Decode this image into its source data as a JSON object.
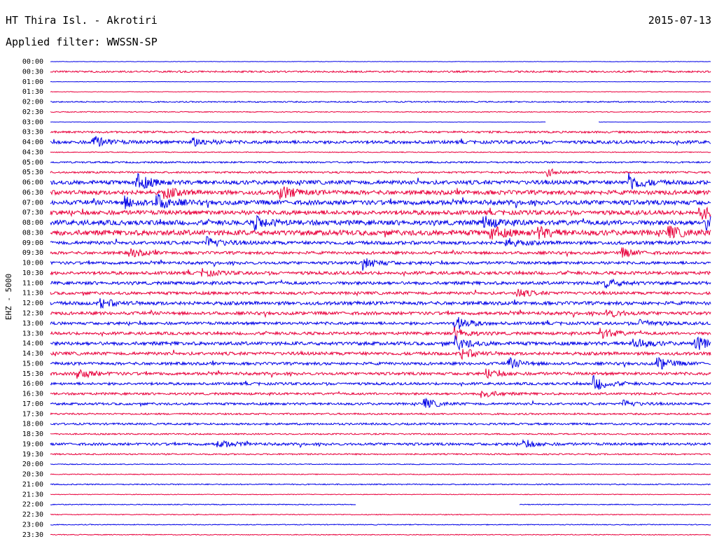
{
  "header": {
    "station": "HT Thira Isl. - Akrotiri",
    "date": "2015-07-13",
    "filter_label": "Applied filter: WWSSN-SP"
  },
  "chart_data": {
    "type": "line",
    "title": "HT Thira Isl. - Akrotiri",
    "ylabel": "EHZ - 5000",
    "rows": [
      "00:00",
      "00:30",
      "01:00",
      "01:30",
      "02:00",
      "02:30",
      "03:00",
      "03:30",
      "04:00",
      "04:30",
      "05:00",
      "05:30",
      "06:00",
      "06:30",
      "07:00",
      "07:30",
      "08:00",
      "08:30",
      "09:00",
      "09:30",
      "10:00",
      "10:30",
      "11:00",
      "11:30",
      "12:00",
      "12:30",
      "13:00",
      "13:30",
      "14:00",
      "14:30",
      "15:00",
      "15:30",
      "16:00",
      "16:30",
      "17:00",
      "17:30",
      "18:00",
      "18:30",
      "19:00",
      "19:30",
      "20:00",
      "20:30",
      "21:00",
      "21:30",
      "22:00",
      "22:30",
      "23:00",
      "23:30"
    ],
    "colors": [
      "#0000e6",
      "#e8003c"
    ],
    "noise_level": [
      0.3,
      1.2,
      0.3,
      0.4,
      0.9,
      0.6,
      0.3,
      1.4,
      2.2,
      0.6,
      1.2,
      1.3,
      2.8,
      3.0,
      3.2,
      3.0,
      3.4,
      3.6,
      2.4,
      2.0,
      2.0,
      2.2,
      2.2,
      2.0,
      2.4,
      2.2,
      2.0,
      2.0,
      2.4,
      2.2,
      2.0,
      2.0,
      1.8,
      1.6,
      1.6,
      1.2,
      1.4,
      1.0,
      1.8,
      1.0,
      0.6,
      0.6,
      0.8,
      0.5,
      0.6,
      0.6,
      0.6,
      0.6
    ],
    "gaps": [
      {
        "row": "03:00",
        "from_min": 22.5,
        "to_min": 24.9
      },
      {
        "row": "22:00",
        "from_min": 13.9,
        "to_min": 21.3
      }
    ],
    "events": [
      {
        "row": "04:00",
        "min": 1.9,
        "amp": 9
      },
      {
        "row": "04:00",
        "min": 6.5,
        "amp": 6
      },
      {
        "row": "05:30",
        "min": 22.6,
        "amp": 5
      },
      {
        "row": "06:00",
        "min": 3.9,
        "amp": 12
      },
      {
        "row": "06:00",
        "min": 26.3,
        "amp": 12
      },
      {
        "row": "06:30",
        "min": 10.4,
        "amp": 10
      },
      {
        "row": "06:30",
        "min": 5.2,
        "amp": 7
      },
      {
        "row": "07:00",
        "min": 4.8,
        "amp": 11
      },
      {
        "row": "07:00",
        "min": 3.4,
        "amp": 7
      },
      {
        "row": "07:30",
        "min": 29.5,
        "amp": 9
      },
      {
        "row": "08:00",
        "min": 9.3,
        "amp": 8
      },
      {
        "row": "08:00",
        "min": 19.7,
        "amp": 8
      },
      {
        "row": "08:00",
        "min": 29.8,
        "amp": 9
      },
      {
        "row": "08:30",
        "min": 20.0,
        "amp": 9
      },
      {
        "row": "08:30",
        "min": 22.1,
        "amp": 8
      },
      {
        "row": "08:30",
        "min": 28.1,
        "amp": 8
      },
      {
        "row": "09:00",
        "min": 7.1,
        "amp": 8
      },
      {
        "row": "09:00",
        "min": 20.7,
        "amp": 6
      },
      {
        "row": "09:30",
        "min": 3.6,
        "amp": 6
      },
      {
        "row": "09:30",
        "min": 26.0,
        "amp": 6
      },
      {
        "row": "10:00",
        "min": 14.2,
        "amp": 9
      },
      {
        "row": "10:30",
        "min": 6.9,
        "amp": 5
      },
      {
        "row": "11:00",
        "min": 25.2,
        "amp": 7
      },
      {
        "row": "11:30",
        "min": 21.2,
        "amp": 6
      },
      {
        "row": "12:00",
        "min": 2.3,
        "amp": 6
      },
      {
        "row": "12:30",
        "min": 25.3,
        "amp": 6
      },
      {
        "row": "13:00",
        "min": 18.4,
        "amp": 10
      },
      {
        "row": "13:00",
        "min": 26.8,
        "amp": 6
      },
      {
        "row": "13:30",
        "min": 18.4,
        "amp": 8
      },
      {
        "row": "13:30",
        "min": 25.0,
        "amp": 8
      },
      {
        "row": "14:00",
        "min": 18.4,
        "amp": 9
      },
      {
        "row": "14:00",
        "min": 26.5,
        "amp": 8
      },
      {
        "row": "14:00",
        "min": 29.3,
        "amp": 10
      },
      {
        "row": "14:30",
        "min": 18.7,
        "amp": 7
      },
      {
        "row": "15:00",
        "min": 20.8,
        "amp": 7
      },
      {
        "row": "15:00",
        "min": 27.6,
        "amp": 9
      },
      {
        "row": "15:30",
        "min": 1.2,
        "amp": 8
      },
      {
        "row": "15:30",
        "min": 19.8,
        "amp": 6
      },
      {
        "row": "16:00",
        "min": 24.7,
        "amp": 10
      },
      {
        "row": "16:30",
        "min": 19.6,
        "amp": 6
      },
      {
        "row": "17:00",
        "min": 17.0,
        "amp": 7
      },
      {
        "row": "17:00",
        "min": 26.0,
        "amp": 5
      },
      {
        "row": "19:00",
        "min": 7.6,
        "amp": 6
      },
      {
        "row": "19:00",
        "min": 21.5,
        "amp": 5
      }
    ]
  }
}
